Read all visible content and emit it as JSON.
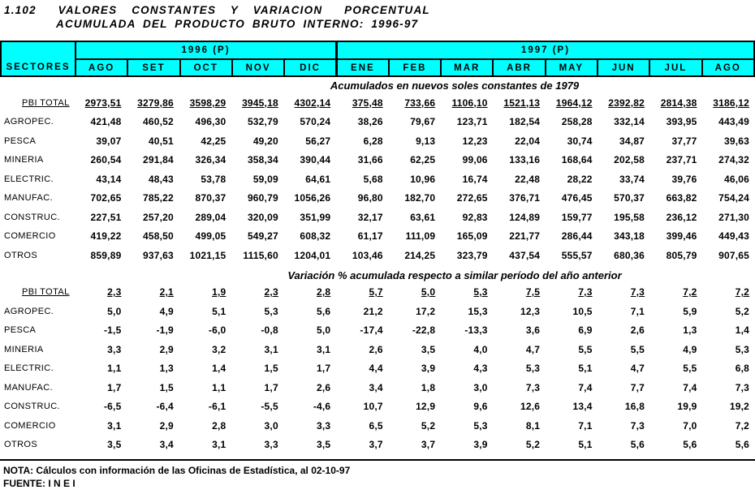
{
  "title": {
    "line1": "1.102   VALORES  CONSTANTES  Y  VARIACION   PORCENTUAL",
    "line2": "ACUMULADA DEL PRODUCTO BRUTO INTERNO: 1996-97"
  },
  "colors": {
    "header_bg": "#00FFFF",
    "border": "#000000",
    "text": "#000000",
    "page_bg": "#FFFFFF"
  },
  "header": {
    "sectors_label": "SECTORES",
    "year_groups": [
      {
        "label": "1996 (P)",
        "months": [
          "AGO",
          "SET",
          "OCT",
          "NOV",
          "DIC"
        ]
      },
      {
        "label": "1997 (P)",
        "months": [
          "ENE",
          "FEB",
          "MAR",
          "ABR",
          "MAY",
          "JUN",
          "JUL",
          "AGO"
        ]
      }
    ]
  },
  "sections": [
    {
      "title": "Acumulados en nuevos soles constantes de 1979",
      "rows": [
        {
          "label": "PBI TOTAL",
          "emphasis": true,
          "values": [
            "2973,51",
            "3279,86",
            "3598,29",
            "3945,18",
            "4302,14",
            "375,48",
            "733,66",
            "1106,10",
            "1521,13",
            "1964,12",
            "2392,82",
            "2814,38",
            "3186,12"
          ]
        },
        {
          "label": "AGROPEC.",
          "emphasis": false,
          "values": [
            "421,48",
            "460,52",
            "496,30",
            "532,79",
            "570,24",
            "38,26",
            "79,67",
            "123,71",
            "182,54",
            "258,28",
            "332,14",
            "393,95",
            "443,49"
          ]
        },
        {
          "label": "PESCA",
          "emphasis": false,
          "values": [
            "39,07",
            "40,51",
            "42,25",
            "49,20",
            "56,27",
            "6,28",
            "9,13",
            "12,23",
            "22,04",
            "30,74",
            "34,87",
            "37,77",
            "39,63"
          ]
        },
        {
          "label": "MINERIA",
          "emphasis": false,
          "values": [
            "260,54",
            "291,84",
            "326,34",
            "358,34",
            "390,44",
            "31,66",
            "62,25",
            "99,06",
            "133,16",
            "168,64",
            "202,58",
            "237,71",
            "274,32"
          ]
        },
        {
          "label": "ELECTRIC.",
          "emphasis": false,
          "values": [
            "43,14",
            "48,43",
            "53,78",
            "59,09",
            "64,61",
            "5,68",
            "10,96",
            "16,74",
            "22,48",
            "28,22",
            "33,74",
            "39,76",
            "46,06"
          ]
        },
        {
          "label": "MANUFAC.",
          "emphasis": false,
          "values": [
            "702,65",
            "785,22",
            "870,37",
            "960,79",
            "1056,26",
            "96,80",
            "182,70",
            "272,65",
            "376,71",
            "476,45",
            "570,37",
            "663,82",
            "754,24"
          ]
        },
        {
          "label": "CONSTRUC.",
          "emphasis": false,
          "values": [
            "227,51",
            "257,20",
            "289,04",
            "320,09",
            "351,99",
            "32,17",
            "63,61",
            "92,83",
            "124,89",
            "159,77",
            "195,58",
            "236,12",
            "271,30"
          ]
        },
        {
          "label": "COMERCIO",
          "emphasis": false,
          "values": [
            "419,22",
            "458,50",
            "499,05",
            "549,27",
            "608,32",
            "61,17",
            "111,09",
            "165,09",
            "221,77",
            "286,44",
            "343,18",
            "399,46",
            "449,43"
          ]
        },
        {
          "label": "OTROS",
          "emphasis": false,
          "values": [
            "859,89",
            "937,63",
            "1021,15",
            "1115,60",
            "1204,01",
            "103,46",
            "214,25",
            "323,79",
            "437,54",
            "555,57",
            "680,36",
            "805,79",
            "907,65"
          ]
        }
      ]
    },
    {
      "title": "Variación % acumulada respecto a similar período del año anterior",
      "rows": [
        {
          "label": "PBI TOTAL",
          "emphasis": true,
          "values": [
            "2,3",
            "2,1",
            "1,9",
            "2,3",
            "2,8",
            "5,7",
            "5,0",
            "5,3",
            "7,5",
            "7,3",
            "7,3",
            "7,2",
            "7,2"
          ]
        },
        {
          "label": "AGROPEC.",
          "emphasis": false,
          "values": [
            "5,0",
            "4,9",
            "5,1",
            "5,3",
            "5,6",
            "21,2",
            "17,2",
            "15,3",
            "12,3",
            "10,5",
            "7,1",
            "5,9",
            "5,2"
          ]
        },
        {
          "label": "PESCA",
          "emphasis": false,
          "values": [
            "-1,5",
            "-1,9",
            "-6,0",
            "-0,8",
            "5,0",
            "-17,4",
            "-22,8",
            "-13,3",
            "3,6",
            "6,9",
            "2,6",
            "1,3",
            "1,4"
          ]
        },
        {
          "label": "MINERIA",
          "emphasis": false,
          "values": [
            "3,3",
            "2,9",
            "3,2",
            "3,1",
            "3,1",
            "2,6",
            "3,5",
            "4,0",
            "4,7",
            "5,5",
            "5,5",
            "4,9",
            "5,3"
          ]
        },
        {
          "label": "ELECTRIC.",
          "emphasis": false,
          "values": [
            "1,1",
            "1,3",
            "1,4",
            "1,5",
            "1,7",
            "4,4",
            "3,9",
            "4,3",
            "5,3",
            "5,1",
            "4,7",
            "5,5",
            "6,8"
          ]
        },
        {
          "label": "MANUFAC.",
          "emphasis": false,
          "values": [
            "1,7",
            "1,5",
            "1,1",
            "1,7",
            "2,6",
            "3,4",
            "1,8",
            "3,0",
            "7,3",
            "7,4",
            "7,7",
            "7,4",
            "7,3"
          ]
        },
        {
          "label": "CONSTRUC.",
          "emphasis": false,
          "values": [
            "-6,5",
            "-6,4",
            "-6,1",
            "-5,5",
            "-4,6",
            "10,7",
            "12,9",
            "9,6",
            "12,6",
            "13,4",
            "16,8",
            "19,9",
            "19,2"
          ]
        },
        {
          "label": "COMERCIO",
          "emphasis": false,
          "values": [
            "3,1",
            "2,9",
            "2,8",
            "3,0",
            "3,3",
            "6,5",
            "5,2",
            "5,3",
            "8,1",
            "7,1",
            "7,3",
            "7,0",
            "7,2"
          ]
        },
        {
          "label": "OTROS",
          "emphasis": false,
          "values": [
            "3,5",
            "3,4",
            "3,1",
            "3,3",
            "3,5",
            "3,7",
            "3,7",
            "3,9",
            "5,2",
            "5,1",
            "5,6",
            "5,6",
            "5,6"
          ]
        }
      ]
    }
  ],
  "footer": {
    "nota": "NOTA: Cálculos con información de las Oficinas de Estadística, al 02-10-97",
    "fuente": "FUENTE: I N E I"
  }
}
